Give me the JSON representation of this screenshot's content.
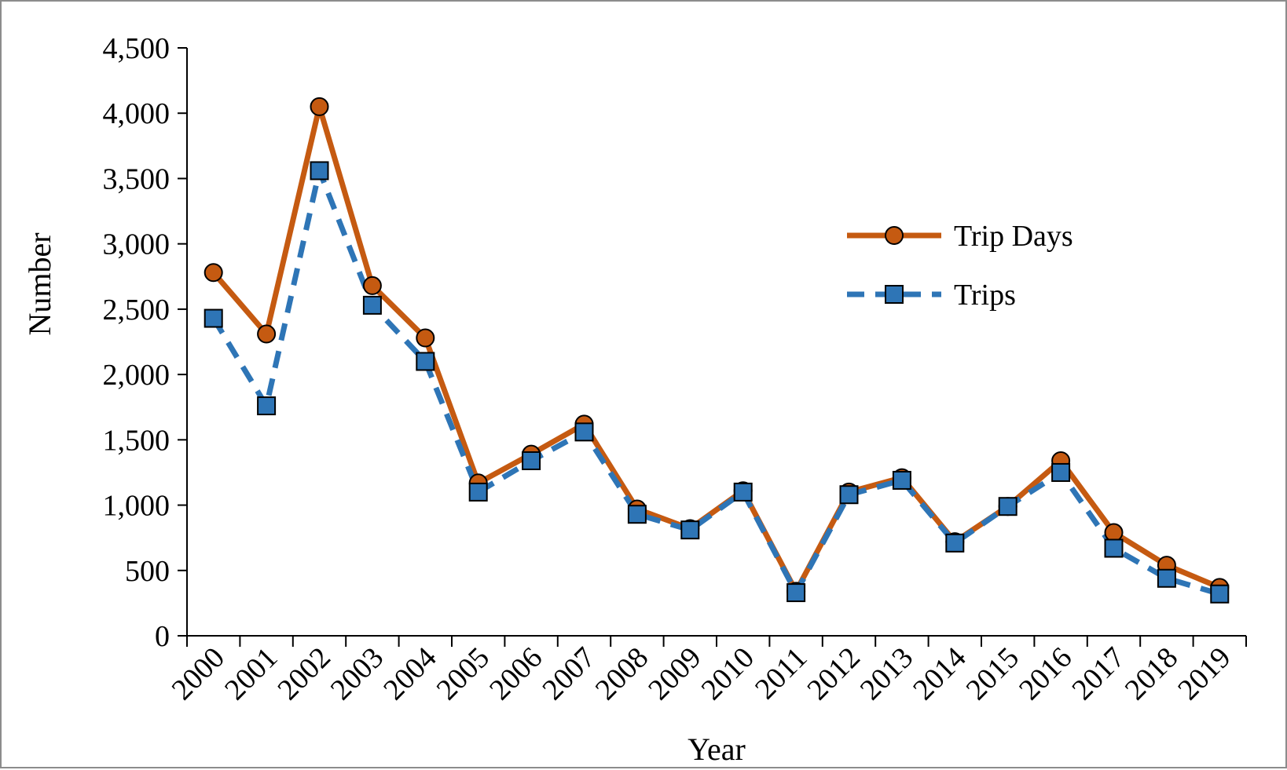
{
  "chart_data": {
    "type": "line",
    "title": "",
    "xlabel": "Year",
    "ylabel": "Number",
    "categories": [
      "2000",
      "2001",
      "2002",
      "2003",
      "2004",
      "2005",
      "2006",
      "2007",
      "2008",
      "2009",
      "2010",
      "2011",
      "2012",
      "2013",
      "2014",
      "2015",
      "2016",
      "2017",
      "2018",
      "2019"
    ],
    "ylim": [
      0,
      4500
    ],
    "yticks": [
      0,
      500,
      1000,
      1500,
      2000,
      2500,
      3000,
      3500,
      4000,
      4500
    ],
    "ytick_labels": [
      "0",
      "500",
      "1,000",
      "1,500",
      "2,000",
      "2,500",
      "3,000",
      "3,500",
      "4,000",
      "4,500"
    ],
    "grid": false,
    "legend_position": "right",
    "series": [
      {
        "name": "Trip Days",
        "color": "#c55a11",
        "marker": "circle",
        "line_style": "solid",
        "values": [
          2780,
          2310,
          4050,
          2680,
          2280,
          1170,
          1390,
          1620,
          970,
          820,
          1110,
          340,
          1100,
          1210,
          720,
          990,
          1340,
          790,
          540,
          370
        ]
      },
      {
        "name": "Trips",
        "color": "#2e75b6",
        "marker": "square",
        "line_style": "dashed",
        "values": [
          2430,
          1760,
          3560,
          2530,
          2100,
          1100,
          1340,
          1560,
          930,
          810,
          1100,
          330,
          1080,
          1190,
          710,
          990,
          1250,
          670,
          440,
          320
        ]
      }
    ]
  }
}
